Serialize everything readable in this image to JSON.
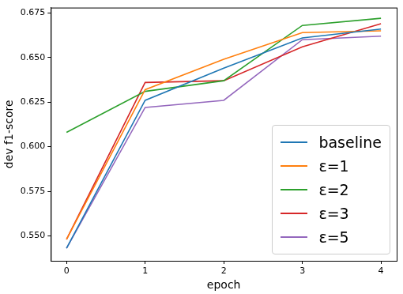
{
  "chart_data": {
    "type": "line",
    "x_label": "epoch",
    "y_label": "dev f1-score",
    "x": [
      0,
      1,
      2,
      3,
      4
    ],
    "series": [
      {
        "name": "baseline",
        "color": "#1f77b4",
        "values": [
          0.543,
          0.626,
          0.644,
          0.661,
          0.666
        ]
      },
      {
        "name": "ε=1",
        "color": "#ff7f0e",
        "values": [
          0.548,
          0.632,
          0.649,
          0.664,
          0.665
        ]
      },
      {
        "name": "ε=2",
        "color": "#2ca02c",
        "values": [
          0.608,
          0.631,
          0.637,
          0.668,
          0.672
        ]
      },
      {
        "name": "ε=3",
        "color": "#d62728",
        "values": [
          0.548,
          0.636,
          0.637,
          0.656,
          0.669
        ]
      },
      {
        "name": "ε=5",
        "color": "#9467bd",
        "values": [
          0.543,
          0.622,
          0.626,
          0.66,
          0.662
        ]
      }
    ],
    "xlim": [
      -0.2,
      4.2
    ],
    "xticks": [
      0,
      1,
      2,
      3,
      4
    ],
    "ylim": [
      0.536,
      0.678
    ],
    "yticks": [
      {
        "value": 0.55,
        "label": "0.550"
      },
      {
        "value": 0.575,
        "label": "0.575"
      },
      {
        "value": 0.6,
        "label": "0.600"
      },
      {
        "value": 0.625,
        "label": "0.625"
      },
      {
        "value": 0.65,
        "label": "0.650"
      },
      {
        "value": 0.675,
        "label": "0.675"
      }
    ],
    "grid": false,
    "legend": "lower right"
  }
}
